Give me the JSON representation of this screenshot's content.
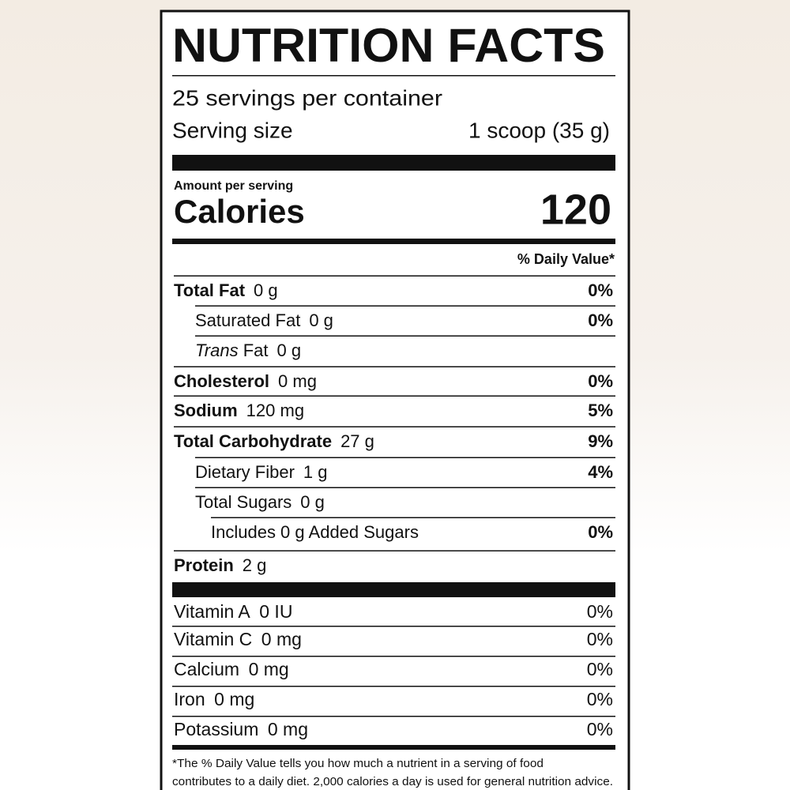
{
  "title": "NUTRITION FACTS",
  "servings": "25 servings per container",
  "serving_size": {
    "label": "Serving size",
    "value": "1 scoop (35 g)"
  },
  "calories": {
    "caption": "Amount per serving",
    "label": "Calories",
    "value": "120"
  },
  "dv_header": "% Daily Value*",
  "nutrients": [
    {
      "name": "Total Fat",
      "amount": "0 g",
      "dv": "0%"
    },
    {
      "name": "Saturated Fat",
      "amount": "0 g",
      "dv": "0%"
    },
    {
      "name_italic": "Trans",
      "name": "Fat",
      "amount": "0 g"
    },
    {
      "name": "Cholesterol",
      "amount": "0 mg",
      "dv": "0%"
    },
    {
      "name": "Sodium",
      "amount": "120 mg",
      "dv": "5%"
    },
    {
      "name": "Total Carbohydrate",
      "amount": "27 g",
      "dv": "9%"
    },
    {
      "name": "Dietary Fiber",
      "amount": "1 g",
      "dv": "4%"
    },
    {
      "name": "Total Sugars",
      "amount": "0 g"
    },
    {
      "name": "Includes 0 g Added Sugars",
      "dv": "0%"
    },
    {
      "name": "Protein",
      "amount": "2 g"
    }
  ],
  "vitamins": [
    {
      "name": "Vitamin A",
      "amount": "0 IU",
      "dv": "0%"
    },
    {
      "name": "Vitamin C",
      "amount": "0 mg",
      "dv": "0%"
    },
    {
      "name": "Calcium",
      "amount": "0 mg",
      "dv": "0%"
    },
    {
      "name": "Iron",
      "amount": "0 mg",
      "dv": "0%"
    },
    {
      "name": "Potassium",
      "amount": "0 mg",
      "dv": "0%"
    }
  ],
  "footnote": [
    "*The % Daily Value tells you how much a nutrient in a serving of food",
    "contributes to a daily diet. 2,000 calories a day is used for general nutrition advice."
  ]
}
